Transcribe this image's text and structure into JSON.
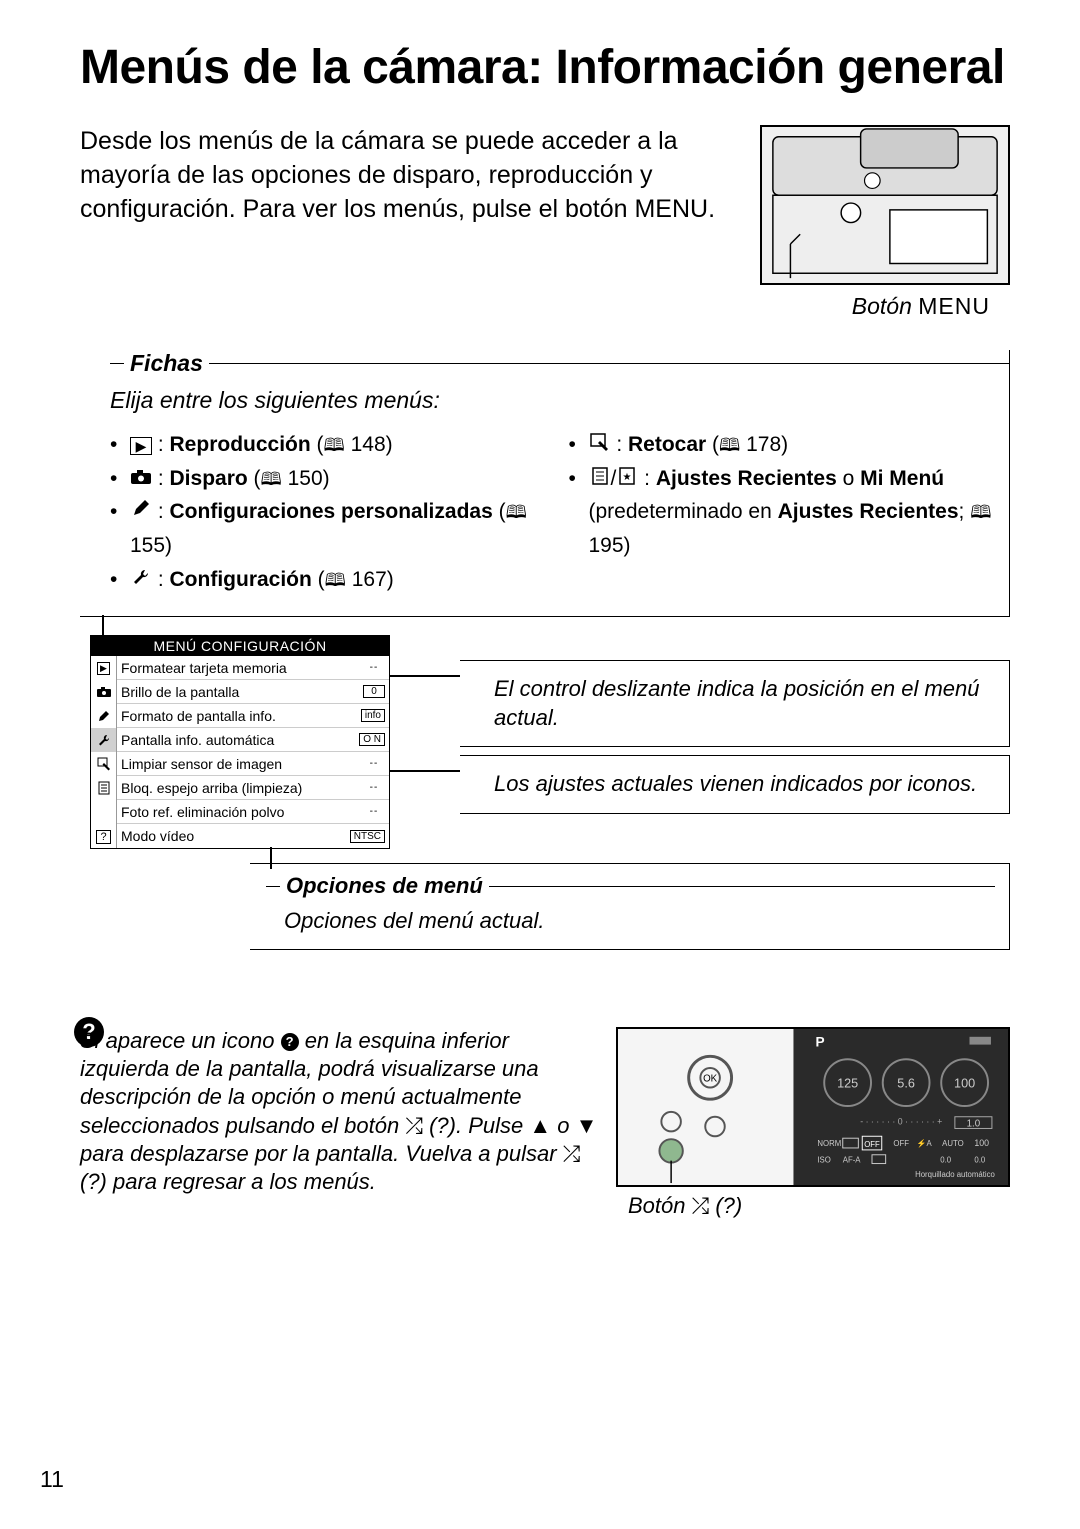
{
  "title": "Menús de la cámara: Información general",
  "intro": "Desde los menús de la cámara se puede acceder a la mayoría de las opciones de disparo, reproducción y configuración.  Para ver los menús, pulse el botón MENU.",
  "camera_caption_prefix": "Botón ",
  "camera_caption_menu": "MENU",
  "fichas": {
    "title": "Fichas",
    "lead": "Elija entre los siguientes menús:",
    "left": [
      {
        "icon": "▶",
        "label": "Reproducción",
        "page": "148"
      },
      {
        "icon": "camera",
        "label": "Disparo",
        "page": "150"
      },
      {
        "icon": "pencil",
        "label": "Configuraciones personalizadas",
        "page": "155"
      },
      {
        "icon": "wrench",
        "label": "Configuración",
        "page": "167"
      }
    ],
    "right": [
      {
        "icon": "retouch",
        "label": "Retocar",
        "page": "178"
      },
      {
        "icon": "recent",
        "label": "Ajustes Recientes",
        "label2": "Mi Menú",
        "tail_pre": "(predeterminado en ",
        "tail_bold": "Ajustes Recientes",
        "tail_post": "; ",
        "page": "195"
      }
    ]
  },
  "menu_shot": {
    "title": "MENÚ CONFIGURACIÓN",
    "tabs": [
      "▶",
      "●",
      "✎",
      "🔧",
      "✎",
      "▤",
      "?"
    ],
    "rows": [
      {
        "label": "Formatear tarjeta memoria",
        "val": "--",
        "dash": true
      },
      {
        "label": "Brillo de la pantalla",
        "val": "0"
      },
      {
        "label": "Formato de pantalla info.",
        "val": "info"
      },
      {
        "label": "Pantalla info. automática",
        "val": "O N"
      },
      {
        "label": "Limpiar sensor de imagen",
        "val": "--",
        "dash": true
      },
      {
        "label": "Bloq. espejo arriba (limpieza)",
        "val": "--",
        "dash": true
      },
      {
        "label": "Foto ref. eliminación polvo",
        "val": "--",
        "dash": true
      },
      {
        "label": "Modo vídeo",
        "val": "NTSC"
      }
    ]
  },
  "callouts": {
    "c1": "El control deslizante indica la posición en el menú actual.",
    "c2": "Los ajustes actuales vienen indicados por iconos.",
    "c3_title": "Opciones de menú",
    "c3_body": "Opciones del menú actual."
  },
  "help": {
    "text_1": "Si aparece un icono ",
    "text_2": " en la esquina inferior izquierda de la pantalla, podrá visualizarse una descripción de la opción o menú actualmente seleccionados pulsando el botón ",
    "zoom_q1": " (?).  Pulse ▲ o ▼ para desplazarse por la pantalla.  Vuelva a pulsar ",
    "zoom_q2": " (?) para regresar a los menús.",
    "zoom_glyph": "⤮",
    "lcd": {
      "p": "P",
      "top_vals": [
        "125",
        "5.6",
        "100"
      ],
      "scale": "± 1.0",
      "row1": [
        "NORM",
        "▭",
        "OFF",
        "OFF",
        "⚡A",
        "AUTO",
        "100"
      ],
      "row2": [
        "ISO",
        "AF-A",
        "▭",
        "",
        "",
        "0.0",
        "0.0"
      ],
      "footer": "Horquillado automático"
    },
    "btn_caption_pre": "Botón ",
    "btn_caption_q": " (?)"
  },
  "page_number": "11",
  "colors": {
    "text": "#000000",
    "bg": "#ffffff",
    "menu_title_bg": "#000000",
    "menu_title_fg": "#ffffff",
    "lcd_bg": "#2a2a2a",
    "camera_fill": "#f0f0f0"
  }
}
